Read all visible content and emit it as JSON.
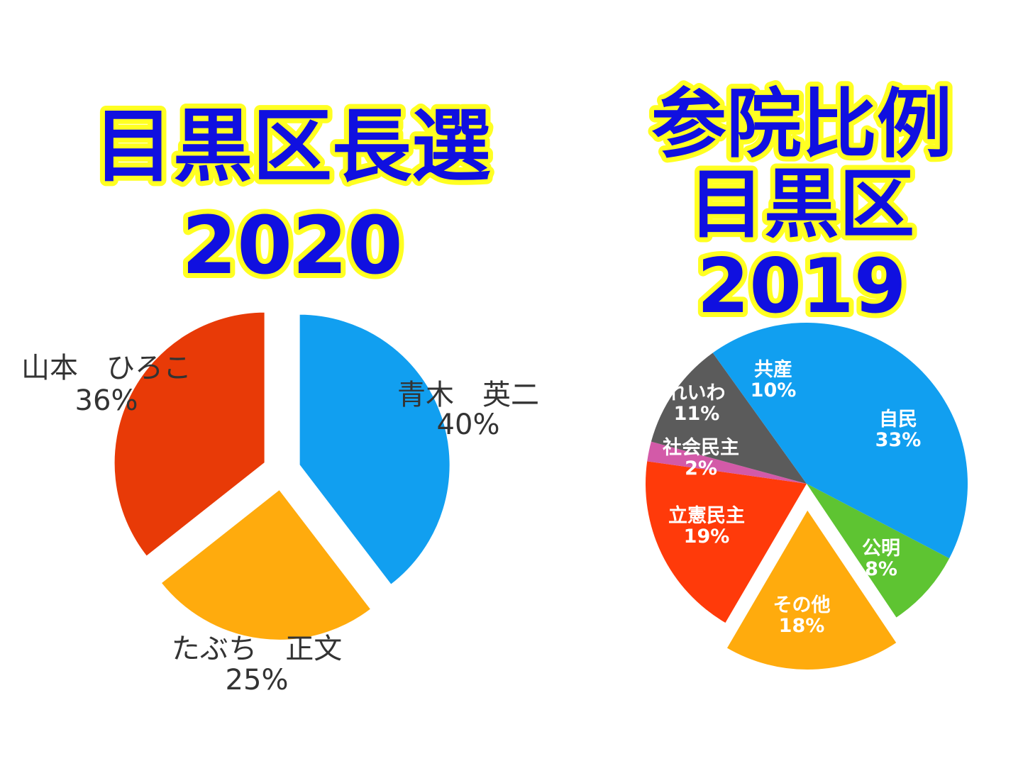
{
  "chart_data": [
    {
      "type": "pie",
      "title": [
        "目黒区長選",
        "2020"
      ],
      "slices": [
        {
          "label": "青木　英二",
          "value": 40,
          "value_label": "40%",
          "color": "#119ff0",
          "exploded": true
        },
        {
          "label": "たぶち　正文",
          "value": 25,
          "value_label": "25%",
          "color": "#ffab0d",
          "exploded": true
        },
        {
          "label": "山本　ひろこ",
          "value": 36,
          "value_label": "36%",
          "color": "#e83a07",
          "exploded": true
        }
      ],
      "label_position": "outside"
    },
    {
      "type": "pie",
      "title": [
        "参院比例",
        "目黒区",
        "2019"
      ],
      "slices": [
        {
          "label": "自民",
          "value": 33,
          "value_label": "33%",
          "color": "#119ff0",
          "exploded": false
        },
        {
          "label": "公明",
          "value": 8,
          "value_label": "8%",
          "color": "#5ec432",
          "exploded": false
        },
        {
          "label": "その他",
          "value": 18,
          "value_label": "18%",
          "color": "#ffab0d",
          "exploded": true
        },
        {
          "label": "立憲民主",
          "value": 19,
          "value_label": "19%",
          "color": "#ff3a0a",
          "exploded": false
        },
        {
          "label": "社会民主",
          "value": 2,
          "value_label": "2%",
          "color": "#d35aa8",
          "exploded": false
        },
        {
          "label": "れいわ",
          "value": 11,
          "value_label": "11%",
          "color": "#5b5b5b",
          "exploded": false
        },
        {
          "label": "共産",
          "value": 10,
          "value_label": "10%",
          "color": "#119ff0",
          "exploded": false
        }
      ],
      "label_position": "inside"
    }
  ]
}
